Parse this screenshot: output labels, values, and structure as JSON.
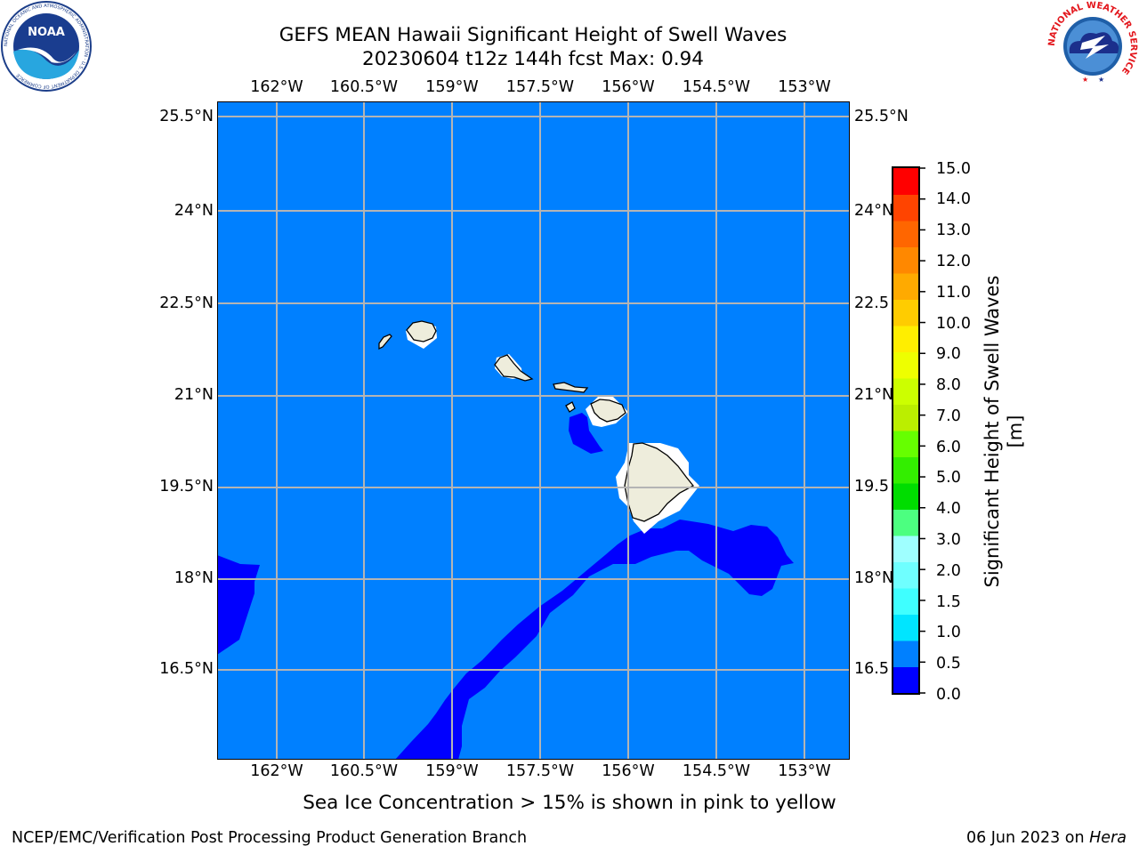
{
  "header": {
    "title_line1": "GEFS MEAN Hawaii Significant Height of Swell Waves",
    "title_line2": "20230604 t12z 144h fcst   Max: 0.94"
  },
  "logos": {
    "noaa_text": "NOAA",
    "noaa_ring_text": "NATIONAL OCEANIC AND ATMOSPHERIC ADMINISTRATION · U.S. DEPARTMENT OF COMMERCE",
    "nws_ring_text": "NATIONAL WEATHER SERVICE"
  },
  "map": {
    "lon_labels": [
      "162°W",
      "160.5°W",
      "159°W",
      "157.5°W",
      "156°W",
      "154.5°W",
      "153°W"
    ],
    "lat_labels_left": [
      "25.5°N",
      "24°N",
      "22.5°N",
      "21°N",
      "19.5°N",
      "18°N",
      "16.5°N"
    ],
    "lat_labels_right": [
      "25.5°N",
      "24°N",
      "22.5",
      "21°N",
      "19.5",
      "18°N",
      "16.5"
    ],
    "ocean_color": "#0080ff",
    "low_swell_color": "#0000ff",
    "land_color": "#eeeddc",
    "grid_color": "#b4b4b4"
  },
  "colorbar": {
    "label": "Significant Height of Swell Waves [m]",
    "ticks": [
      "15.0",
      "14.0",
      "13.0",
      "12.0",
      "11.0",
      "10.0",
      "9.0",
      "8.0",
      "7.0",
      "6.0",
      "5.0",
      "4.0",
      "3.0",
      "2.0",
      "1.5",
      "1.0",
      "0.5",
      "0.0"
    ],
    "bounds": [
      0.0,
      0.5,
      1.0,
      1.5,
      2.0,
      3.0,
      4.0,
      5.0,
      6.0,
      7.0,
      8.0,
      9.0,
      10.0,
      11.0,
      12.0,
      13.0,
      14.0,
      15.0
    ],
    "colors": [
      "#0000ff",
      "#0080ff",
      "#00e5ff",
      "#3fffff",
      "#6fffff",
      "#9fffff",
      "#4cff80",
      "#00dd00",
      "#33ee00",
      "#66ff00",
      "#bbee00",
      "#ccff00",
      "#eeff00",
      "#ffee00",
      "#ffcc00",
      "#ffaa00",
      "#ff8800",
      "#ff6600",
      "#ff4400",
      "#ff0000"
    ]
  },
  "caption": "Sea Ice Concentration > 15% is shown in pink to yellow",
  "footer": {
    "left": "NCEP/EMC/Verification Post Processing Product Generation Branch",
    "right_prefix": "06 Jun 2023 on ",
    "right_machine": "Hera"
  }
}
